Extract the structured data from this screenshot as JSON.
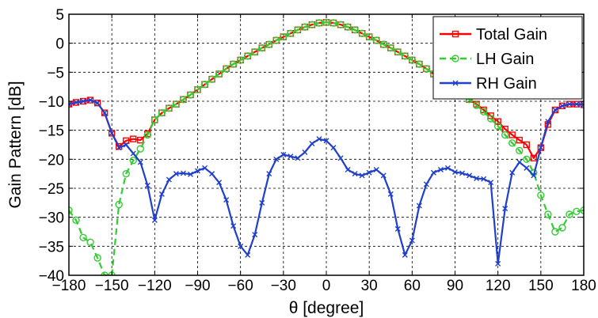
{
  "chart_data": {
    "type": "line",
    "xlabel": "θ [degree]",
    "ylabel": "Gain Pattern [dB]",
    "xlim": [
      -180,
      180
    ],
    "ylim": [
      -40,
      5
    ],
    "xticks": [
      -180,
      -150,
      -120,
      -90,
      -60,
      -30,
      0,
      30,
      60,
      90,
      120,
      150,
      180
    ],
    "yticks": [
      5,
      0,
      -5,
      -10,
      -15,
      -20,
      -25,
      -30,
      -35,
      -40
    ],
    "xtick_labels": [
      "−180",
      "−150",
      "−120",
      "−90",
      "−60",
      "−30",
      "0",
      "30",
      "60",
      "90",
      "120",
      "150",
      "180"
    ],
    "ytick_labels": [
      "5",
      "0",
      "−5",
      "−10",
      "−15",
      "−20",
      "−25",
      "−30",
      "−35",
      "−40"
    ],
    "grid": true,
    "legend_position": "top-right",
    "series": [
      {
        "name": "Total Gain",
        "color": "#ff0000",
        "line": "solid",
        "marker": "square",
        "points": [
          [
            -180,
            -10.5
          ],
          [
            -175,
            -10.2
          ],
          [
            -170,
            -10
          ],
          [
            -165,
            -9.8
          ],
          [
            -160,
            -10.3
          ],
          [
            -155,
            -12
          ],
          [
            -150,
            -15.5
          ],
          [
            -145,
            -17.8
          ],
          [
            -140,
            -16.8
          ],
          [
            -135,
            -16.5
          ],
          [
            -130,
            -16.7
          ],
          [
            -125,
            -15.6
          ],
          [
            -120,
            -13.2
          ],
          [
            -115,
            -12
          ],
          [
            -110,
            -11.2
          ],
          [
            -105,
            -10.5
          ],
          [
            -100,
            -9.7
          ],
          [
            -95,
            -8.9
          ],
          [
            -90,
            -8
          ],
          [
            -85,
            -7.1
          ],
          [
            -80,
            -6.2
          ],
          [
            -75,
            -5.3
          ],
          [
            -70,
            -4.4
          ],
          [
            -65,
            -3.6
          ],
          [
            -60,
            -2.9
          ],
          [
            -55,
            -2.2
          ],
          [
            -50,
            -1.5
          ],
          [
            -45,
            -0.8
          ],
          [
            -40,
            -0.2
          ],
          [
            -35,
            0.5
          ],
          [
            -30,
            1.1
          ],
          [
            -25,
            1.7
          ],
          [
            -20,
            2.3
          ],
          [
            -15,
            2.8
          ],
          [
            -10,
            3.2
          ],
          [
            -5,
            3.5
          ],
          [
            0,
            3.6
          ],
          [
            5,
            3.5
          ],
          [
            10,
            3.2
          ],
          [
            15,
            2.8
          ],
          [
            20,
            2.3
          ],
          [
            25,
            1.7
          ],
          [
            30,
            1.1
          ],
          [
            35,
            0.5
          ],
          [
            40,
            -0.2
          ],
          [
            45,
            -0.8
          ],
          [
            50,
            -1.5
          ],
          [
            55,
            -2.2
          ],
          [
            60,
            -2.9
          ],
          [
            65,
            -3.6
          ],
          [
            70,
            -4.4
          ],
          [
            75,
            -5.3
          ],
          [
            80,
            -6.2
          ],
          [
            85,
            -7.1
          ],
          [
            90,
            -8
          ],
          [
            95,
            -8.9
          ],
          [
            100,
            -9.7
          ],
          [
            105,
            -10.5
          ],
          [
            110,
            -11.5
          ],
          [
            115,
            -12.5
          ],
          [
            120,
            -13.5
          ],
          [
            125,
            -14.8
          ],
          [
            130,
            -15.8
          ],
          [
            135,
            -16.7
          ],
          [
            140,
            -17.5
          ],
          [
            145,
            -19.8
          ],
          [
            150,
            -18
          ],
          [
            155,
            -14
          ],
          [
            160,
            -11.5
          ],
          [
            165,
            -10.8
          ],
          [
            170,
            -10.5
          ],
          [
            175,
            -10.5
          ],
          [
            180,
            -10.6
          ]
        ]
      },
      {
        "name": "LH Gain",
        "color": "#33cc33",
        "line": "dashed",
        "marker": "circle",
        "points": [
          [
            -180,
            -28.8
          ],
          [
            -175,
            -30.5
          ],
          [
            -170,
            -33.5
          ],
          [
            -165,
            -34.3
          ],
          [
            -160,
            -37
          ],
          [
            -155,
            -40
          ],
          [
            -150,
            -40
          ],
          [
            -145,
            -27.8
          ],
          [
            -140,
            -22.5
          ],
          [
            -135,
            -20.2
          ],
          [
            -130,
            -18.2
          ],
          [
            -125,
            -15.8
          ],
          [
            -120,
            -13.2
          ],
          [
            -115,
            -12
          ],
          [
            -110,
            -11.2
          ],
          [
            -105,
            -10.5
          ],
          [
            -100,
            -9.7
          ],
          [
            -95,
            -8.9
          ],
          [
            -90,
            -8
          ],
          [
            -85,
            -7.1
          ],
          [
            -80,
            -6.2
          ],
          [
            -75,
            -5.3
          ],
          [
            -70,
            -4.4
          ],
          [
            -65,
            -3.6
          ],
          [
            -60,
            -2.9
          ],
          [
            -55,
            -2.2
          ],
          [
            -50,
            -1.5
          ],
          [
            -45,
            -0.8
          ],
          [
            -40,
            -0.2
          ],
          [
            -35,
            0.5
          ],
          [
            -30,
            1.1
          ],
          [
            -25,
            1.7
          ],
          [
            -20,
            2.3
          ],
          [
            -15,
            2.8
          ],
          [
            -10,
            3.2
          ],
          [
            -5,
            3.5
          ],
          [
            0,
            3.6
          ],
          [
            5,
            3.5
          ],
          [
            10,
            3.2
          ],
          [
            15,
            2.8
          ],
          [
            20,
            2.3
          ],
          [
            25,
            1.7
          ],
          [
            30,
            1.1
          ],
          [
            35,
            0.5
          ],
          [
            40,
            -0.2
          ],
          [
            45,
            -0.8
          ],
          [
            50,
            -1.5
          ],
          [
            55,
            -2.2
          ],
          [
            60,
            -2.9
          ],
          [
            65,
            -3.6
          ],
          [
            70,
            -4.4
          ],
          [
            75,
            -5.3
          ],
          [
            80,
            -6.2
          ],
          [
            85,
            -7.1
          ],
          [
            90,
            -8
          ],
          [
            95,
            -8.9
          ],
          [
            100,
            -9.7
          ],
          [
            105,
            -10.7
          ],
          [
            110,
            -11.8
          ],
          [
            115,
            -13
          ],
          [
            120,
            -14.3
          ],
          [
            125,
            -15.8
          ],
          [
            130,
            -17.2
          ],
          [
            135,
            -18.5
          ],
          [
            140,
            -20
          ],
          [
            145,
            -22.3
          ],
          [
            150,
            -26.2
          ],
          [
            155,
            -29.5
          ],
          [
            160,
            -32.5
          ],
          [
            165,
            -31.8
          ],
          [
            170,
            -29.5
          ],
          [
            175,
            -29
          ],
          [
            180,
            -28.8
          ]
        ]
      },
      {
        "name": "RH Gain",
        "color": "#1f3fcc",
        "line": "solid",
        "marker": "x",
        "points": [
          [
            -180,
            -10.5
          ],
          [
            -175,
            -10.2
          ],
          [
            -170,
            -10
          ],
          [
            -165,
            -9.8
          ],
          [
            -160,
            -10.3
          ],
          [
            -155,
            -12
          ],
          [
            -150,
            -15.5
          ],
          [
            -145,
            -18
          ],
          [
            -140,
            -17.5
          ],
          [
            -135,
            -19
          ],
          [
            -130,
            -20.5
          ],
          [
            -125,
            -24.5
          ],
          [
            -120,
            -30.5
          ],
          [
            -115,
            -26
          ],
          [
            -110,
            -23.5
          ],
          [
            -105,
            -22.5
          ],
          [
            -100,
            -22.4
          ],
          [
            -95,
            -22.6
          ],
          [
            -90,
            -22
          ],
          [
            -85,
            -21.5
          ],
          [
            -80,
            -22.5
          ],
          [
            -75,
            -24
          ],
          [
            -70,
            -27
          ],
          [
            -65,
            -31.5
          ],
          [
            -60,
            -35
          ],
          [
            -55,
            -36.5
          ],
          [
            -50,
            -33
          ],
          [
            -45,
            -27.5
          ],
          [
            -40,
            -22.5
          ],
          [
            -35,
            -20
          ],
          [
            -30,
            -19.2
          ],
          [
            -25,
            -19.5
          ],
          [
            -20,
            -19.8
          ],
          [
            -15,
            -18.8
          ],
          [
            -10,
            -17.3
          ],
          [
            -5,
            -16.5
          ],
          [
            0,
            -16.8
          ],
          [
            5,
            -18
          ],
          [
            10,
            -19.8
          ],
          [
            15,
            -21.8
          ],
          [
            20,
            -22.5
          ],
          [
            25,
            -22.8
          ],
          [
            30,
            -22.3
          ],
          [
            35,
            -21.8
          ],
          [
            40,
            -22.8
          ],
          [
            45,
            -26
          ],
          [
            50,
            -32
          ],
          [
            55,
            -36.5
          ],
          [
            60,
            -34
          ],
          [
            65,
            -28
          ],
          [
            70,
            -24.3
          ],
          [
            75,
            -22.3
          ],
          [
            80,
            -21.8
          ],
          [
            85,
            -21.5
          ],
          [
            90,
            -22.2
          ],
          [
            95,
            -22.4
          ],
          [
            100,
            -22.8
          ],
          [
            105,
            -23.3
          ],
          [
            110,
            -23.4
          ],
          [
            115,
            -24
          ],
          [
            120,
            -38
          ],
          [
            125,
            -28.5
          ],
          [
            130,
            -22.3
          ],
          [
            135,
            -20.5
          ],
          [
            140,
            -21.5
          ],
          [
            145,
            -22.8
          ],
          [
            150,
            -18
          ],
          [
            155,
            -13.5
          ],
          [
            160,
            -11.5
          ],
          [
            165,
            -10.8
          ],
          [
            170,
            -10.5
          ],
          [
            175,
            -10.5
          ],
          [
            180,
            -10.6
          ]
        ]
      }
    ]
  }
}
